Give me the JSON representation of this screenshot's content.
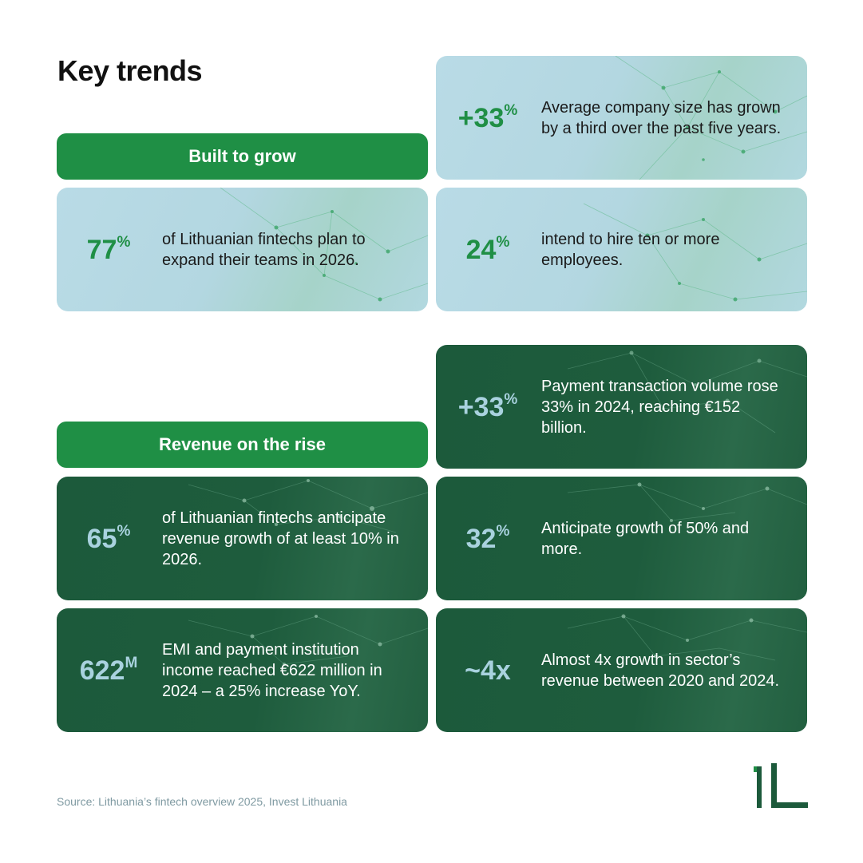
{
  "title": "Key trends",
  "sections": [
    {
      "label": "Built to grow"
    },
    {
      "label": "Revenue on the rise"
    }
  ],
  "cards": [
    {
      "value": "+33",
      "suffix": "%",
      "text": "Average company size has grown by a third over the past five years."
    },
    {
      "value": "77",
      "suffix": "%",
      "text": "of Lithuanian fintechs plan to expand their teams in 2026."
    },
    {
      "value": "24",
      "suffix": "%",
      "text": "intend to hire ten or more employees."
    },
    {
      "value": "+33",
      "suffix": "%",
      "text": "Payment transaction volume rose 33% in 2024, reaching €152 billion."
    },
    {
      "value": "65",
      "suffix": "%",
      "text": "of Lithuanian fintechs anticipate revenue growth of at least 10% in 2026."
    },
    {
      "value": "32",
      "suffix": "%",
      "text": "Anticipate growth of 50% and more."
    },
    {
      "value": "622",
      "suffix": "M",
      "text": "EMI and payment institution income reached €622 million in 2024 – a 25% increase YoY."
    },
    {
      "value": "~4x",
      "suffix": "",
      "text": "Almost 4x growth in sector’s revenue between 2020 and 2024."
    }
  ],
  "source": "Source: Lithuania’s fintech overview 2025, Invest Lithuania",
  "colors": {
    "accent_green": "#1f8f45",
    "dark_green": "#1c5a3b",
    "light_blue": "#b9dbe6",
    "dark_stat": "#a9d2df"
  }
}
